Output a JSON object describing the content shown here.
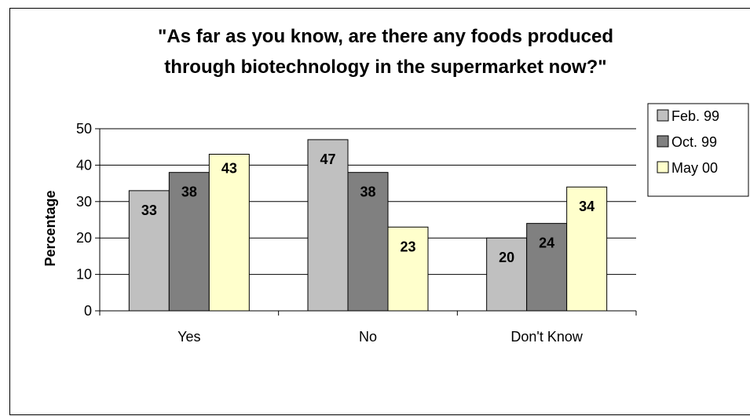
{
  "chart_data": {
    "type": "bar",
    "title_line1": "\"As far as you know, are there any foods produced",
    "title_line2": "through biotechnology in the supermarket now?\"",
    "xlabel": "",
    "ylabel": "Percentage",
    "categories": [
      "Yes",
      "No",
      "Don't Know"
    ],
    "series": [
      {
        "name": "Feb. 99",
        "values": [
          33,
          47,
          20
        ],
        "color": "#c0c0c0"
      },
      {
        "name": "Oct. 99",
        "values": [
          38,
          38,
          24
        ],
        "color": "#808080"
      },
      {
        "name": "May 00",
        "values": [
          43,
          23,
          34
        ],
        "color": "#ffffcc"
      }
    ],
    "ylim": [
      0,
      50
    ],
    "yticks": [
      0,
      10,
      20,
      30,
      40,
      50
    ],
    "grid": true,
    "legend": "right"
  }
}
